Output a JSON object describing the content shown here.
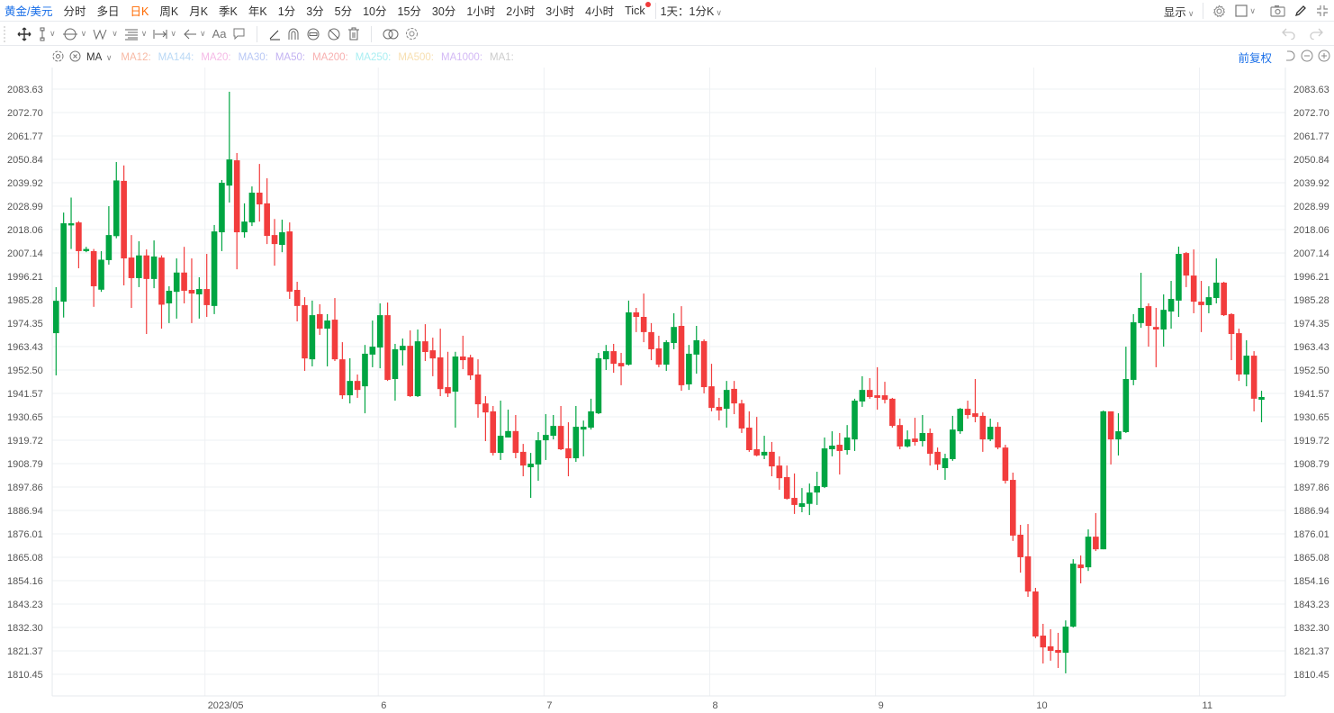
{
  "topbar": {
    "symbol": "黄金/美元",
    "periods": [
      "分时",
      "多日",
      "日K",
      "周K",
      "月K",
      "季K",
      "年K",
      "1分",
      "3分",
      "5分",
      "10分",
      "15分",
      "30分",
      "1小时",
      "2小时",
      "3小时",
      "4小时",
      "Tick"
    ],
    "active_period": "日K",
    "custom_period": "1天：1分K",
    "display_label": "显示"
  },
  "toolbar2": {
    "text_tool_label": "Aa"
  },
  "ma_row": {
    "label": "MA",
    "items": [
      {
        "label": "MA12:",
        "color": "#f7b9a4"
      },
      {
        "label": "MA144:",
        "color": "#b9d8f5"
      },
      {
        "label": "MA20:",
        "color": "#f5b9e6"
      },
      {
        "label": "MA30:",
        "color": "#b9c8f5"
      },
      {
        "label": "MA50:",
        "color": "#c3b3f2"
      },
      {
        "label": "MA200:",
        "color": "#f7b0b0"
      },
      {
        "label": "MA250:",
        "color": "#a9eef2"
      },
      {
        "label": "MA500:",
        "color": "#f7dfb0"
      },
      {
        "label": "MA1000:",
        "color": "#d3b9f5"
      },
      {
        "label": "MA1:",
        "color": "#cccccc"
      }
    ],
    "adjust_label": "前复权"
  },
  "colors": {
    "up": "#00a542",
    "down": "#f23d3d",
    "accent": "#1a6fe8",
    "active": "#ff6a00"
  },
  "chart_data": {
    "type": "candlestick",
    "y_ticks": [
      "2083.63",
      "2072.70",
      "2061.77",
      "2050.84",
      "2039.92",
      "2028.99",
      "2018.06",
      "2007.14",
      "1996.21",
      "1985.28",
      "1974.35",
      "1963.43",
      "1952.50",
      "1941.57",
      "1930.65",
      "1919.72",
      "1908.79",
      "1897.86",
      "1886.94",
      "1876.01",
      "1865.08",
      "1854.16",
      "1843.23",
      "1832.30",
      "1821.37",
      "1810.45"
    ],
    "ylim": [
      1810.45,
      2083.63
    ],
    "x_ticks": [
      {
        "label": "2023/05",
        "candle": 20
      },
      {
        "label": "6",
        "candle": 43
      },
      {
        "label": "7",
        "candle": 65
      },
      {
        "label": "8",
        "candle": 87
      },
      {
        "label": "9",
        "candle": 109
      },
      {
        "label": "10",
        "candle": 130
      },
      {
        "label": "11",
        "candle": 152
      }
    ],
    "grid": true,
    "ohlc_fields": [
      "open",
      "high",
      "low",
      "close"
    ],
    "candles": [
      [
        1969.7,
        1991.2,
        1950.0,
        1984.8
      ],
      [
        1984.4,
        2026.0,
        1977.0,
        2021.0
      ],
      [
        2020.0,
        2033.0,
        2009.0,
        2021.0
      ],
      [
        2021.4,
        2022.0,
        2000.0,
        2008.0
      ],
      [
        2008.0,
        2010.0,
        2007.5,
        2009.0
      ],
      [
        2008.0,
        2009.0,
        1982.0,
        1991.6
      ],
      [
        1990.0,
        2008.0,
        1989.0,
        2004.0
      ],
      [
        2003.8,
        2029.0,
        2001.7,
        2015.5
      ],
      [
        2015.0,
        2049.6,
        2014.0,
        2041.0
      ],
      [
        2040.8,
        2048.0,
        1992.0,
        2004.6
      ],
      [
        2005.0,
        2015.5,
        1981.5,
        1995.4
      ],
      [
        1995.4,
        2012.6,
        1991.2,
        2006.0
      ],
      [
        2006.0,
        2008.8,
        1969.3,
        1995.0
      ],
      [
        1995.0,
        2013.0,
        1990.7,
        2005.5
      ],
      [
        2005.0,
        2006.0,
        1971.8,
        1983.0
      ],
      [
        1983.6,
        1991.6,
        1974.4,
        1989.5
      ],
      [
        1989.0,
        2004.6,
        1976.5,
        1998.0
      ],
      [
        1998.0,
        2010.0,
        1983.6,
        1989.5
      ],
      [
        1989.9,
        2004.6,
        1974.4,
        1988.2
      ],
      [
        1987.8,
        1995.8,
        1976.5,
        1990.3
      ],
      [
        1990.3,
        2006.7,
        1977.3,
        1982.8
      ],
      [
        1982.4,
        2020.2,
        1978.6,
        2017.2
      ],
      [
        2016.8,
        2041.2,
        2008.0,
        2039.9
      ],
      [
        2038.6,
        2082.4,
        2030.7,
        2050.8
      ],
      [
        2050.4,
        2053.8,
        1999.5,
        2016.8
      ],
      [
        2016.8,
        2030.3,
        2014.3,
        2021.8
      ],
      [
        2021.4,
        2038.2,
        2019.7,
        2035.3
      ],
      [
        2035.3,
        2048.7,
        2021.8,
        2029.8
      ],
      [
        2030.3,
        2042.0,
        2011.3,
        2015.1
      ],
      [
        2015.5,
        2023.0,
        2001.2,
        2011.3
      ],
      [
        2010.9,
        2022.7,
        2007.5,
        2016.8
      ],
      [
        2017.2,
        2021.4,
        1985.7,
        1989.1
      ],
      [
        1989.9,
        1993.7,
        1975.2,
        1982.4
      ],
      [
        1982.8,
        1986.5,
        1952.1,
        1957.9
      ],
      [
        1957.5,
        1984.9,
        1954.2,
        1978.1
      ],
      [
        1978.6,
        1983.2,
        1968.9,
        1971.8
      ],
      [
        1971.8,
        1978.6,
        1954.2,
        1975.6
      ],
      [
        1976.0,
        1986.1,
        1956.7,
        1957.5
      ],
      [
        1957.5,
        1965.5,
        1939.0,
        1940.7
      ],
      [
        1940.7,
        1958.0,
        1936.9,
        1947.4
      ],
      [
        1947.4,
        1950.4,
        1939.5,
        1943.2
      ],
      [
        1944.9,
        1964.2,
        1932.3,
        1960.1
      ],
      [
        1959.7,
        1975.6,
        1953.8,
        1963.4
      ],
      [
        1963.0,
        1983.6,
        1953.3,
        1978.1
      ],
      [
        1978.1,
        1984.0,
        1947.4,
        1947.9
      ],
      [
        1948.3,
        1964.7,
        1938.2,
        1962.2
      ],
      [
        1961.7,
        1967.2,
        1954.6,
        1963.8
      ],
      [
        1963.8,
        1971.0,
        1939.9,
        1940.3
      ],
      [
        1940.3,
        1971.4,
        1939.9,
        1965.9
      ],
      [
        1965.9,
        1973.9,
        1956.7,
        1960.9
      ],
      [
        1961.7,
        1967.6,
        1949.6,
        1957.9
      ],
      [
        1958.4,
        1971.8,
        1940.3,
        1943.6
      ],
      [
        1944.5,
        1961.0,
        1939.9,
        1941.6
      ],
      [
        1942.4,
        1961.0,
        1925.6,
        1958.8
      ],
      [
        1958.8,
        1968.5,
        1952.9,
        1957.1
      ],
      [
        1958.4,
        1959.6,
        1947.9,
        1950.0
      ],
      [
        1950.4,
        1957.5,
        1930.2,
        1936.5
      ],
      [
        1936.9,
        1940.3,
        1919.3,
        1932.7
      ],
      [
        1933.2,
        1935.7,
        1912.6,
        1913.8
      ],
      [
        1913.8,
        1938.2,
        1910.5,
        1921.8
      ],
      [
        1921.0,
        1934.0,
        1921.0,
        1924.0
      ],
      [
        1924.0,
        1931.5,
        1911.3,
        1913.8
      ],
      [
        1914.3,
        1918.0,
        1902.9,
        1907.9
      ],
      [
        1907.1,
        1913.8,
        1892.8,
        1908.8
      ],
      [
        1908.4,
        1923.5,
        1900.8,
        1919.7
      ],
      [
        1919.7,
        1931.9,
        1910.5,
        1922.2
      ],
      [
        1921.8,
        1931.5,
        1920.1,
        1926.4
      ],
      [
        1926.4,
        1935.7,
        1915.1,
        1915.5
      ],
      [
        1915.9,
        1928.1,
        1902.9,
        1911.3
      ],
      [
        1911.3,
        1935.7,
        1909.6,
        1926.0
      ],
      [
        1924.7,
        1928.9,
        1912.2,
        1926.0
      ],
      [
        1925.6,
        1939.1,
        1924.7,
        1933.2
      ],
      [
        1932.3,
        1960.5,
        1931.9,
        1958.0
      ],
      [
        1957.5,
        1964.2,
        1952.5,
        1961.3
      ],
      [
        1961.3,
        1964.7,
        1951.2,
        1955.4
      ],
      [
        1955.8,
        1960.5,
        1945.4,
        1954.2
      ],
      [
        1955.0,
        1984.9,
        1954.6,
        1979.4
      ],
      [
        1979.4,
        1981.5,
        1970.2,
        1977.3
      ],
      [
        1977.3,
        1988.2,
        1965.5,
        1970.2
      ],
      [
        1970.2,
        1974.4,
        1957.1,
        1962.2
      ],
      [
        1962.6,
        1968.5,
        1953.8,
        1955.0
      ],
      [
        1955.0,
        1966.4,
        1952.1,
        1965.5
      ],
      [
        1965.1,
        1979.0,
        1962.2,
        1972.6
      ],
      [
        1973.1,
        1982.3,
        1942.8,
        1945.4
      ],
      [
        1945.8,
        1964.2,
        1943.2,
        1960.1
      ],
      [
        1959.7,
        1973.1,
        1950.8,
        1966.4
      ],
      [
        1966.0,
        1966.8,
        1941.6,
        1944.5
      ],
      [
        1944.9,
        1955.4,
        1933.2,
        1934.8
      ],
      [
        1935.3,
        1939.5,
        1929.0,
        1933.6
      ],
      [
        1934.4,
        1947.4,
        1925.6,
        1943.2
      ],
      [
        1943.7,
        1947.4,
        1931.9,
        1936.9
      ],
      [
        1936.9,
        1938.6,
        1923.1,
        1925.2
      ],
      [
        1925.6,
        1933.2,
        1914.3,
        1915.1
      ],
      [
        1915.5,
        1930.6,
        1912.2,
        1912.6
      ],
      [
        1912.6,
        1921.8,
        1910.9,
        1914.3
      ],
      [
        1914.3,
        1918.9,
        1902.9,
        1907.5
      ],
      [
        1907.9,
        1912.2,
        1896.6,
        1902.0
      ],
      [
        1902.5,
        1907.9,
        1892.0,
        1892.4
      ],
      [
        1892.8,
        1904.2,
        1885.3,
        1889.5
      ],
      [
        1888.6,
        1897.4,
        1886.1,
        1890.3
      ],
      [
        1890.0,
        1899.5,
        1884.8,
        1895.3
      ],
      [
        1895.3,
        1905.0,
        1889.5,
        1898.3
      ],
      [
        1897.9,
        1921.0,
        1897.4,
        1915.9
      ],
      [
        1915.5,
        1923.9,
        1912.2,
        1917.2
      ],
      [
        1917.6,
        1923.1,
        1903.7,
        1914.7
      ],
      [
        1915.1,
        1926.8,
        1913.0,
        1921.0
      ],
      [
        1920.1,
        1939.1,
        1914.7,
        1938.2
      ],
      [
        1937.8,
        1949.6,
        1935.3,
        1943.2
      ],
      [
        1943.2,
        1948.7,
        1939.1,
        1939.9
      ],
      [
        1940.7,
        1953.8,
        1934.0,
        1939.5
      ],
      [
        1940.7,
        1947.0,
        1936.9,
        1938.6
      ],
      [
        1939.1,
        1939.5,
        1925.6,
        1926.4
      ],
      [
        1926.8,
        1929.8,
        1915.5,
        1916.8
      ],
      [
        1916.8,
        1924.3,
        1916.3,
        1920.1
      ],
      [
        1920.5,
        1930.2,
        1917.2,
        1918.9
      ],
      [
        1919.3,
        1931.5,
        1916.8,
        1923.1
      ],
      [
        1923.1,
        1925.2,
        1907.9,
        1913.4
      ],
      [
        1914.3,
        1916.3,
        1905.8,
        1908.4
      ],
      [
        1906.7,
        1913.4,
        1901.2,
        1911.3
      ],
      [
        1910.9,
        1931.1,
        1910.1,
        1924.7
      ],
      [
        1923.9,
        1934.8,
        1922.7,
        1934.4
      ],
      [
        1934.4,
        1938.2,
        1929.8,
        1931.5
      ],
      [
        1932.3,
        1948.3,
        1928.1,
        1930.6
      ],
      [
        1931.1,
        1932.7,
        1914.3,
        1920.1
      ],
      [
        1920.1,
        1929.8,
        1919.3,
        1926.0
      ],
      [
        1926.0,
        1928.1,
        1915.5,
        1916.3
      ],
      [
        1916.3,
        1917.6,
        1899.5,
        1900.8
      ],
      [
        1901.2,
        1904.6,
        1872.7,
        1875.2
      ],
      [
        1875.6,
        1880.2,
        1857.9,
        1865.1
      ],
      [
        1865.5,
        1880.6,
        1846.6,
        1849.1
      ],
      [
        1849.1,
        1850.8,
        1827.3,
        1828.1
      ],
      [
        1828.5,
        1834.0,
        1815.5,
        1823.0
      ],
      [
        1823.5,
        1831.5,
        1816.8,
        1821.4
      ],
      [
        1821.8,
        1829.8,
        1813.4,
        1820.5
      ],
      [
        1820.5,
        1835.6,
        1810.9,
        1832.7
      ],
      [
        1832.7,
        1864.2,
        1832.3,
        1862.1
      ],
      [
        1861.7,
        1865.9,
        1852.9,
        1860.0
      ],
      [
        1860.4,
        1878.1,
        1858.7,
        1874.7
      ],
      [
        1874.7,
        1885.7,
        1868.0,
        1868.8
      ],
      [
        1868.8,
        1933.6,
        1868.8,
        1933.2
      ],
      [
        1933.2,
        1933.2,
        1908.4,
        1920.1
      ],
      [
        1920.1,
        1932.3,
        1912.6,
        1923.9
      ],
      [
        1923.5,
        1963.4,
        1923.1,
        1948.3
      ],
      [
        1947.9,
        1978.6,
        1945.4,
        1974.8
      ],
      [
        1974.4,
        1997.9,
        1972.2,
        1981.5
      ],
      [
        1982.3,
        1983.6,
        1963.4,
        1973.1
      ],
      [
        1972.6,
        1981.5,
        1953.8,
        1971.4
      ],
      [
        1971.4,
        1987.8,
        1963.4,
        1980.6
      ],
      [
        1979.8,
        1994.1,
        1971.8,
        1985.7
      ],
      [
        1984.9,
        2010.1,
        1977.3,
        2006.7
      ],
      [
        2007.1,
        2007.6,
        1991.2,
        1996.6
      ],
      [
        1996.6,
        2008.8,
        1979.0,
        1984.4
      ],
      [
        1984.4,
        1994.1,
        1970.2,
        1982.8
      ],
      [
        1982.8,
        1991.6,
        1979.0,
        1986.5
      ],
      [
        1986.1,
        2004.6,
        1983.6,
        1993.3
      ],
      [
        1993.3,
        1993.7,
        1977.7,
        1978.1
      ],
      [
        1978.6,
        1979.0,
        1957.1,
        1969.3
      ],
      [
        1969.7,
        1971.8,
        1947.4,
        1950.4
      ],
      [
        1950.4,
        1966.4,
        1944.9,
        1959.2
      ],
      [
        1959.2,
        1961.3,
        1933.2,
        1939.1
      ],
      [
        1938.6,
        1942.8,
        1928.1,
        1939.9
      ]
    ]
  }
}
